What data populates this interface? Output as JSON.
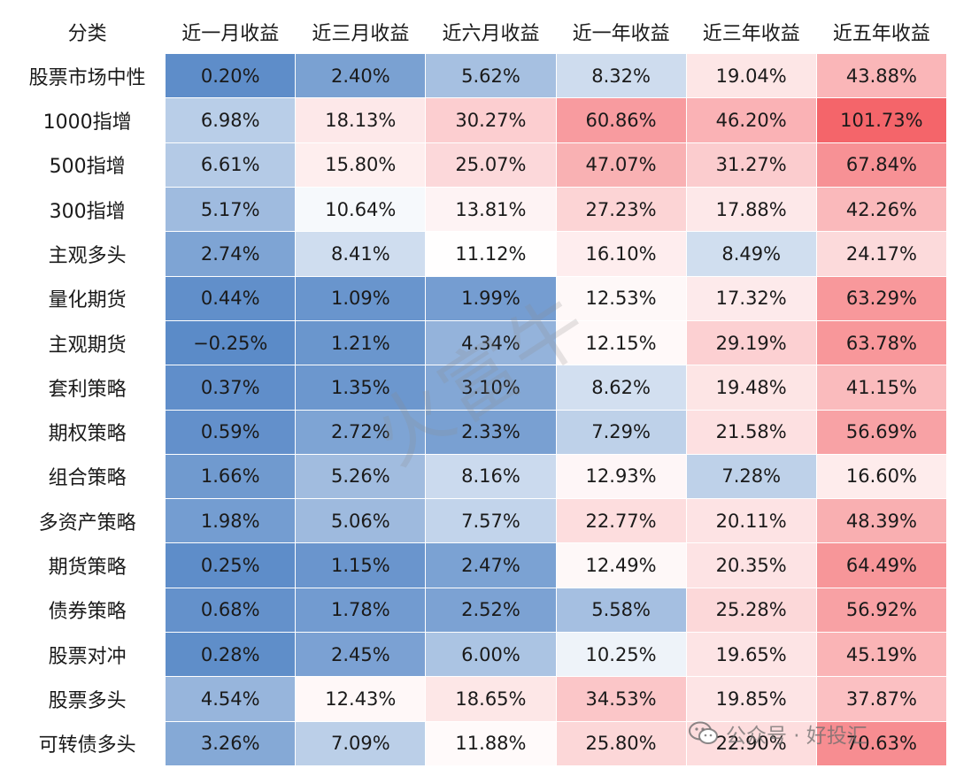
{
  "header": {
    "category_label": "分类",
    "columns": [
      "近一月收益",
      "近三月收益",
      "近六月收益",
      "近一年收益",
      "近三年收益",
      "近五年收益"
    ]
  },
  "chart_data": {
    "type": "heatmap",
    "categories": [
      "股票市场中性",
      "1000指增",
      "500指增",
      "300指增",
      "主观多头",
      "量化期货",
      "主观期货",
      "套利策略",
      "期权策略",
      "组合策略",
      "多资产策略",
      "期货策略",
      "债券策略",
      "股票对冲",
      "股票多头",
      "可转债多头"
    ],
    "rows": [
      {
        "category": "股票市场中性",
        "values": [
          "0.20%",
          "2.40%",
          "5.62%",
          "8.32%",
          "19.04%",
          "43.88%"
        ]
      },
      {
        "category": "1000指增",
        "values": [
          "6.98%",
          "18.13%",
          "30.27%",
          "60.86%",
          "46.20%",
          "101.73%"
        ]
      },
      {
        "category": "500指增",
        "values": [
          "6.61%",
          "15.80%",
          "25.07%",
          "47.07%",
          "31.27%",
          "67.84%"
        ]
      },
      {
        "category": "300指增",
        "values": [
          "5.17%",
          "10.64%",
          "13.81%",
          "27.23%",
          "17.88%",
          "42.26%"
        ]
      },
      {
        "category": "主观多头",
        "values": [
          "2.74%",
          "8.41%",
          "11.12%",
          "16.10%",
          "8.49%",
          "24.17%"
        ]
      },
      {
        "category": "量化期货",
        "values": [
          "0.44%",
          "1.09%",
          "1.99%",
          "12.53%",
          "17.32%",
          "63.29%"
        ]
      },
      {
        "category": "主观期货",
        "values": [
          "−0.25%",
          "1.21%",
          "4.34%",
          "12.15%",
          "29.19%",
          "63.78%"
        ]
      },
      {
        "category": "套利策略",
        "values": [
          "0.37%",
          "1.35%",
          "3.10%",
          "8.62%",
          "19.48%",
          "41.15%"
        ]
      },
      {
        "category": "期权策略",
        "values": [
          "0.59%",
          "2.72%",
          "2.33%",
          "7.29%",
          "21.58%",
          "56.69%"
        ]
      },
      {
        "category": "组合策略",
        "values": [
          "1.66%",
          "5.26%",
          "8.16%",
          "12.93%",
          "7.28%",
          "16.60%"
        ]
      },
      {
        "category": "多资产策略",
        "values": [
          "1.98%",
          "5.06%",
          "7.57%",
          "22.77%",
          "20.11%",
          "48.39%"
        ]
      },
      {
        "category": "期货策略",
        "values": [
          "0.25%",
          "1.15%",
          "2.47%",
          "12.49%",
          "20.35%",
          "64.49%"
        ]
      },
      {
        "category": "债券策略",
        "values": [
          "0.68%",
          "1.78%",
          "2.52%",
          "5.58%",
          "25.28%",
          "56.92%"
        ]
      },
      {
        "category": "股票对冲",
        "values": [
          "0.28%",
          "2.45%",
          "6.00%",
          "10.25%",
          "19.65%",
          "45.19%"
        ]
      },
      {
        "category": "股票多头",
        "values": [
          "4.54%",
          "12.43%",
          "18.65%",
          "34.53%",
          "19.85%",
          "37.87%"
        ]
      },
      {
        "category": "可转债多头",
        "values": [
          "3.26%",
          "7.09%",
          "11.88%",
          "25.80%",
          "22.90%",
          "70.63%"
        ]
      }
    ],
    "color_scale": {
      "low_color": "#5b8bc8",
      "mid_color": "#ffffff",
      "high_color": "#f4656a",
      "mid_value": 11
    }
  },
  "watermark": {
    "text": "火富牛"
  },
  "footer": {
    "text": "公众号 · 好投汇"
  },
  "icons": {
    "footer_icon": "wechat-icon"
  }
}
